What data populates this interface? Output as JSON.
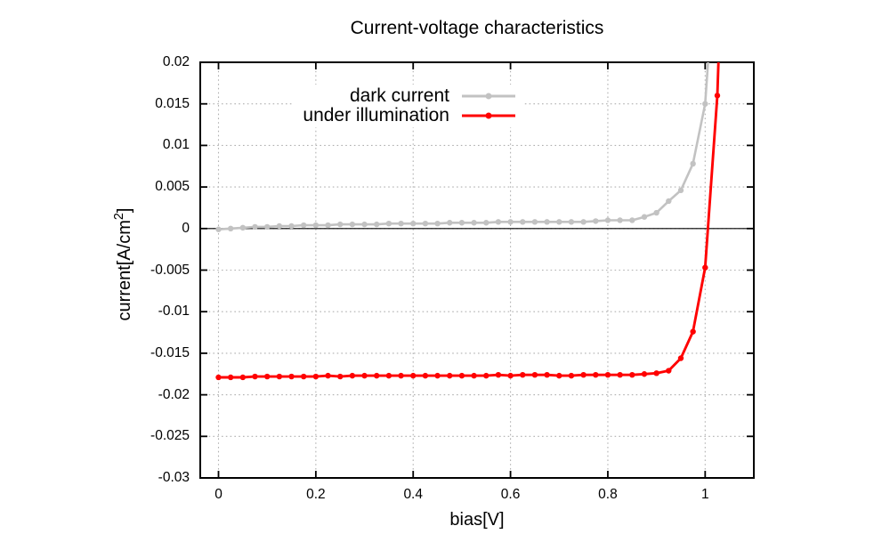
{
  "page": {
    "background": "#ffffff"
  },
  "chart_data": {
    "type": "line",
    "title": "Current-voltage characteristics",
    "xlabel": "bias[V]",
    "ylabel": "current[A/cm²]",
    "xlim": [
      -0.0375,
      1.1
    ],
    "ylim": [
      -0.03,
      0.02
    ],
    "grid": "dotted",
    "zero_axis_line": true,
    "legend_position": "inside top-center, opaque",
    "axis_color": "#000000",
    "grid_color": "#b0b0b0",
    "x_ticks": {
      "values": [
        0,
        0.2,
        0.4,
        0.6,
        0.8,
        1.0
      ],
      "labels": [
        "0",
        "0.2",
        "0.4",
        "0.6",
        "0.8",
        "1"
      ]
    },
    "y_ticks": {
      "values": [
        0.02,
        0.015,
        0.01,
        0.005,
        0,
        -0.005,
        -0.01,
        -0.015,
        -0.02,
        -0.025,
        -0.03
      ],
      "labels": [
        "0.02",
        "0.015",
        "0.01",
        "0.005",
        "0",
        "-0.005",
        "-0.01",
        "-0.015",
        "-0.02",
        "-0.025",
        "-0.03"
      ]
    },
    "series": [
      {
        "name": "dark current",
        "color": "#c2c2c2",
        "marker": "circle",
        "x": [
          0,
          0.025,
          0.05,
          0.075,
          0.1,
          0.125,
          0.15,
          0.175,
          0.2,
          0.225,
          0.25,
          0.275,
          0.3,
          0.325,
          0.35,
          0.375,
          0.4,
          0.425,
          0.45,
          0.475,
          0.5,
          0.525,
          0.55,
          0.575,
          0.6,
          0.625,
          0.65,
          0.675,
          0.7,
          0.725,
          0.75,
          0.775,
          0.8,
          0.825,
          0.85,
          0.875,
          0.9,
          0.925,
          0.95,
          0.975,
          1.0,
          1.025
        ],
        "values": [
          -0.0001,
          0.0,
          0.0001,
          0.0002,
          0.0002,
          0.0003,
          0.0003,
          0.0004,
          0.0004,
          0.0004,
          0.0005,
          0.0005,
          0.0005,
          0.0005,
          0.0006,
          0.0006,
          0.0006,
          0.0006,
          0.0006,
          0.0007,
          0.0007,
          0.0007,
          0.0007,
          0.0008,
          0.0008,
          0.0008,
          0.0008,
          0.0008,
          0.0008,
          0.0008,
          0.0008,
          0.0009,
          0.001,
          0.001,
          0.001,
          0.0014,
          0.0019,
          0.0033,
          0.0046,
          0.0078,
          0.015,
          0.036
        ]
      },
      {
        "name": "under illumination",
        "color": "#ff0000",
        "marker": "circle",
        "x": [
          0,
          0.025,
          0.05,
          0.075,
          0.1,
          0.125,
          0.15,
          0.175,
          0.2,
          0.225,
          0.25,
          0.275,
          0.3,
          0.325,
          0.35,
          0.375,
          0.4,
          0.425,
          0.45,
          0.475,
          0.5,
          0.525,
          0.55,
          0.575,
          0.6,
          0.625,
          0.65,
          0.675,
          0.7,
          0.725,
          0.75,
          0.775,
          0.8,
          0.825,
          0.85,
          0.875,
          0.9,
          0.925,
          0.95,
          0.975,
          1.0,
          1.025,
          1.05
        ],
        "values": [
          -0.0179,
          -0.0179,
          -0.0179,
          -0.0178,
          -0.0178,
          -0.0178,
          -0.0178,
          -0.0178,
          -0.0178,
          -0.0177,
          -0.0178,
          -0.0177,
          -0.0177,
          -0.0177,
          -0.0177,
          -0.0177,
          -0.0177,
          -0.0177,
          -0.0177,
          -0.0177,
          -0.0177,
          -0.0177,
          -0.0177,
          -0.0176,
          -0.0177,
          -0.0176,
          -0.0176,
          -0.0176,
          -0.0177,
          -0.0177,
          -0.0176,
          -0.0176,
          -0.0176,
          -0.0176,
          -0.0176,
          -0.0175,
          -0.0174,
          -0.0171,
          -0.0156,
          -0.0124,
          -0.0047,
          0.016,
          0.06
        ]
      }
    ]
  }
}
